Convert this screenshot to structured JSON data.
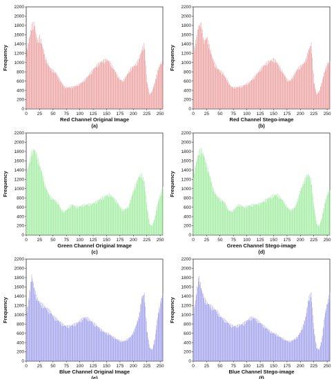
{
  "chart_data": [
    {
      "type": "bar",
      "panel_label": "(a)",
      "xlabel": "Red Channel Original Image",
      "ylabel": "Frequency",
      "color": "#e88c8c",
      "xlim": [
        0,
        255
      ],
      "ylim": [
        0,
        2200
      ],
      "xticks": [
        0,
        25,
        50,
        75,
        100,
        125,
        150,
        175,
        200,
        225,
        250
      ],
      "yticks": [
        0,
        200,
        400,
        600,
        800,
        1000,
        1200,
        1400,
        1600,
        1800,
        2000,
        2200
      ],
      "x": [
        0,
        10,
        15,
        20,
        25,
        30,
        35,
        40,
        45,
        50,
        55,
        60,
        65,
        70,
        75,
        80,
        85,
        90,
        95,
        100,
        105,
        110,
        115,
        120,
        125,
        130,
        135,
        140,
        145,
        150,
        155,
        160,
        165,
        170,
        175,
        180,
        185,
        190,
        195,
        200,
        205,
        210,
        215,
        220,
        225,
        230,
        235,
        240,
        245,
        250,
        255
      ],
      "values": [
        1250,
        1850,
        1900,
        1500,
        1600,
        1400,
        1150,
        1000,
        900,
        850,
        800,
        700,
        600,
        500,
        480,
        480,
        490,
        500,
        530,
        560,
        600,
        660,
        730,
        800,
        880,
        950,
        1000,
        1050,
        1080,
        1100,
        1050,
        950,
        850,
        750,
        650,
        620,
        700,
        800,
        900,
        950,
        1000,
        1100,
        1300,
        1450,
        600,
        320,
        400,
        600,
        850,
        1000,
        1050
      ]
    },
    {
      "type": "bar",
      "panel_label": "(b)",
      "xlabel": "Red Channel Stego-image",
      "ylabel": "Frequency",
      "color": "#e88c8c",
      "xlim": [
        0,
        255
      ],
      "ylim": [
        0,
        2200
      ],
      "xticks": [
        0,
        25,
        50,
        75,
        100,
        125,
        150,
        175,
        200,
        225,
        250
      ],
      "yticks": [
        0,
        200,
        400,
        600,
        800,
        1000,
        1200,
        1400,
        1600,
        1800,
        2000,
        2200
      ],
      "x": [
        0,
        10,
        15,
        20,
        25,
        30,
        35,
        40,
        45,
        50,
        55,
        60,
        65,
        70,
        75,
        80,
        85,
        90,
        95,
        100,
        105,
        110,
        115,
        120,
        125,
        130,
        135,
        140,
        145,
        150,
        155,
        160,
        165,
        170,
        175,
        180,
        185,
        190,
        195,
        200,
        205,
        210,
        215,
        220,
        225,
        230,
        235,
        240,
        245,
        250,
        255
      ],
      "values": [
        1250,
        1850,
        1880,
        1480,
        1600,
        1400,
        1150,
        1000,
        900,
        850,
        800,
        700,
        600,
        500,
        480,
        480,
        490,
        500,
        530,
        560,
        600,
        660,
        730,
        800,
        880,
        950,
        1000,
        1050,
        1080,
        1100,
        1050,
        950,
        850,
        750,
        650,
        620,
        700,
        800,
        900,
        950,
        1000,
        1100,
        1300,
        1450,
        600,
        320,
        400,
        600,
        850,
        1000,
        1050
      ]
    },
    {
      "type": "bar",
      "panel_label": "(c)",
      "xlabel": "Green Channel Original Image",
      "ylabel": "Frequency",
      "color": "#8ce88c",
      "xlim": [
        0,
        255
      ],
      "ylim": [
        0,
        2200
      ],
      "xticks": [
        0,
        25,
        50,
        75,
        100,
        125,
        150,
        175,
        200,
        225,
        250
      ],
      "yticks": [
        0,
        200,
        400,
        600,
        800,
        1000,
        1200,
        1400,
        1600,
        1800,
        2000,
        2200
      ],
      "x": [
        0,
        10,
        15,
        20,
        25,
        30,
        35,
        40,
        45,
        50,
        55,
        60,
        65,
        70,
        75,
        80,
        85,
        90,
        95,
        100,
        105,
        110,
        115,
        120,
        125,
        130,
        135,
        140,
        145,
        150,
        155,
        160,
        165,
        170,
        175,
        180,
        185,
        190,
        195,
        200,
        205,
        210,
        215,
        220,
        225,
        230,
        235,
        240,
        245,
        250,
        255
      ],
      "values": [
        1350,
        1850,
        1900,
        1750,
        1550,
        1350,
        1100,
        950,
        850,
        800,
        760,
        700,
        560,
        520,
        560,
        620,
        680,
        650,
        620,
        640,
        660,
        670,
        680,
        690,
        710,
        740,
        780,
        820,
        850,
        880,
        900,
        860,
        800,
        720,
        620,
        560,
        580,
        620,
        800,
        1000,
        1150,
        1300,
        1350,
        1200,
        650,
        250,
        200,
        400,
        700,
        900,
        1050
      ]
    },
    {
      "type": "bar",
      "panel_label": "(d)",
      "xlabel": "Green Channel Stego-image",
      "ylabel": "Frequency",
      "color": "#8ce88c",
      "xlim": [
        0,
        255
      ],
      "ylim": [
        0,
        2200
      ],
      "xticks": [
        0,
        25,
        50,
        75,
        100,
        125,
        150,
        175,
        200,
        225,
        250
      ],
      "yticks": [
        0,
        200,
        400,
        600,
        800,
        1000,
        1200,
        1400,
        1600,
        1800,
        2000,
        2200
      ],
      "x": [
        0,
        10,
        15,
        20,
        25,
        30,
        35,
        40,
        45,
        50,
        55,
        60,
        65,
        70,
        75,
        80,
        85,
        90,
        95,
        100,
        105,
        110,
        115,
        120,
        125,
        130,
        135,
        140,
        145,
        150,
        155,
        160,
        165,
        170,
        175,
        180,
        185,
        190,
        195,
        200,
        205,
        210,
        215,
        220,
        225,
        230,
        235,
        240,
        245,
        250,
        255
      ],
      "values": [
        1350,
        1850,
        1900,
        1750,
        1550,
        1350,
        1100,
        950,
        850,
        800,
        760,
        700,
        560,
        520,
        560,
        620,
        680,
        650,
        620,
        640,
        660,
        670,
        680,
        690,
        710,
        740,
        780,
        820,
        850,
        880,
        900,
        860,
        800,
        720,
        620,
        560,
        580,
        620,
        800,
        1000,
        1150,
        1300,
        1350,
        1200,
        650,
        250,
        200,
        400,
        700,
        900,
        1050
      ]
    },
    {
      "type": "bar",
      "panel_label": "(e)",
      "xlabel": "Blue Channel Original Image",
      "ylabel": "Frequency",
      "color": "#8c8ce8",
      "xlim": [
        0,
        255
      ],
      "ylim": [
        0,
        2200
      ],
      "xticks": [
        0,
        25,
        50,
        75,
        100,
        125,
        150,
        175,
        200,
        225,
        250
      ],
      "yticks": [
        0,
        200,
        400,
        600,
        800,
        1000,
        1200,
        1400,
        1600,
        1800,
        2000,
        2200
      ],
      "x": [
        0,
        10,
        15,
        20,
        25,
        30,
        35,
        40,
        45,
        50,
        55,
        60,
        65,
        70,
        75,
        80,
        85,
        90,
        95,
        100,
        105,
        110,
        115,
        120,
        125,
        130,
        135,
        140,
        145,
        150,
        155,
        160,
        165,
        170,
        175,
        180,
        185,
        190,
        195,
        200,
        205,
        210,
        215,
        220,
        225,
        230,
        235,
        240,
        245,
        250,
        255
      ],
      "values": [
        1000,
        1900,
        1600,
        1400,
        1300,
        1250,
        1200,
        1150,
        1100,
        1000,
        950,
        900,
        850,
        800,
        780,
        780,
        800,
        820,
        850,
        900,
        950,
        970,
        950,
        900,
        850,
        800,
        750,
        700,
        650,
        620,
        600,
        550,
        520,
        480,
        450,
        440,
        460,
        500,
        550,
        650,
        800,
        1000,
        1400,
        1500,
        700,
        300,
        250,
        500,
        1000,
        1300,
        1500
      ]
    },
    {
      "type": "bar",
      "panel_label": "(f)",
      "xlabel": "Blue Channel Stego-image",
      "ylabel": "Frequency",
      "color": "#8c8ce8",
      "xlim": [
        0,
        255
      ],
      "ylim": [
        0,
        2200
      ],
      "xticks": [
        0,
        25,
        50,
        75,
        100,
        125,
        150,
        175,
        200,
        225,
        250
      ],
      "yticks": [
        0,
        200,
        400,
        600,
        800,
        1000,
        1200,
        1400,
        1600,
        1800,
        2000,
        2200
      ],
      "x": [
        0,
        10,
        15,
        20,
        25,
        30,
        35,
        40,
        45,
        50,
        55,
        60,
        65,
        70,
        75,
        80,
        85,
        90,
        95,
        100,
        105,
        110,
        115,
        120,
        125,
        130,
        135,
        140,
        145,
        150,
        155,
        160,
        165,
        170,
        175,
        180,
        185,
        190,
        195,
        200,
        205,
        210,
        215,
        220,
        225,
        230,
        235,
        240,
        245,
        250,
        255
      ],
      "values": [
        1000,
        1900,
        1600,
        1400,
        1300,
        1250,
        1200,
        1150,
        1100,
        1000,
        950,
        900,
        850,
        800,
        780,
        780,
        800,
        820,
        850,
        900,
        950,
        970,
        950,
        900,
        850,
        800,
        750,
        700,
        650,
        620,
        600,
        550,
        520,
        480,
        450,
        440,
        460,
        500,
        550,
        650,
        800,
        1000,
        1400,
        1500,
        700,
        300,
        250,
        500,
        1000,
        1300,
        1500
      ]
    }
  ]
}
